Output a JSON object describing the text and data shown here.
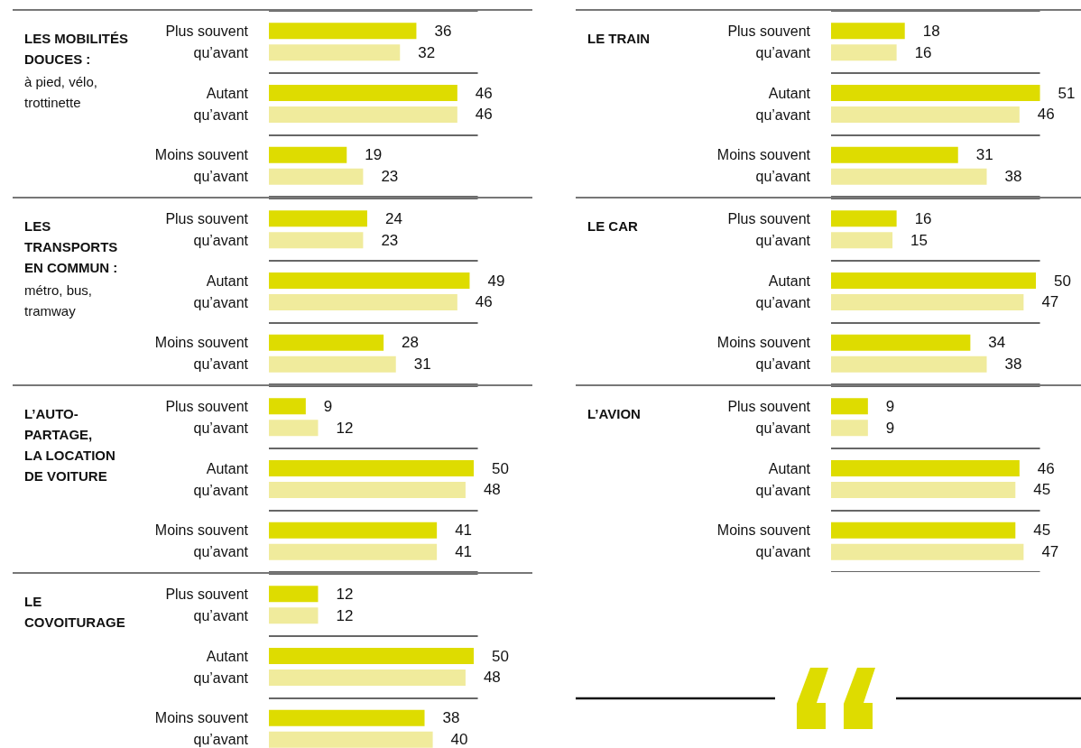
{
  "chart_data": [
    {
      "type": "bar",
      "orientation": "horizontal",
      "title": "LES MOBILITÉS\nDOUCES :",
      "subtitle": "à pied, vélo,\ntrottinette",
      "categories": [
        "Plus souvent\nqu’avant",
        "Autant\nqu’avant",
        "Moins souvent\nqu’avant"
      ],
      "grid": "y",
      "data_labels": true,
      "series": [
        {
          "color": "#dedc00",
          "values": [
            36,
            46,
            19
          ]
        },
        {
          "color": "#f0eb9c",
          "values": [
            32,
            46,
            23
          ]
        }
      ]
    },
    {
      "type": "bar",
      "orientation": "horizontal",
      "title": "LES\nTRANSPORTS\nEN COMMUN :",
      "subtitle": "métro, bus,\ntramway",
      "categories": [
        "Plus souvent\nqu’avant",
        "Autant\nqu’avant",
        "Moins souvent\nqu’avant"
      ],
      "grid": "y",
      "data_labels": true,
      "series": [
        {
          "color": "#dedc00",
          "values": [
            24,
            49,
            28
          ]
        },
        {
          "color": "#f0eb9c",
          "values": [
            23,
            46,
            31
          ]
        }
      ]
    },
    {
      "type": "bar",
      "orientation": "horizontal",
      "title": "L’AUTO-\nPARTAGE,\nLA LOCATION\nDE VOITURE",
      "categories": [
        "Plus souvent\nqu’avant",
        "Autant\nqu’avant",
        "Moins souvent\nqu’avant"
      ],
      "grid": "y",
      "data_labels": true,
      "series": [
        {
          "color": "#dedc00",
          "values": [
            9,
            50,
            41
          ]
        },
        {
          "color": "#f0eb9c",
          "values": [
            12,
            48,
            41
          ]
        }
      ]
    },
    {
      "type": "bar",
      "orientation": "horizontal",
      "title": "LE\nCOVOITURAGE",
      "categories": [
        "Plus souvent\nqu’avant",
        "Autant\nqu’avant",
        "Moins souvent\nqu’avant"
      ],
      "grid": "y",
      "data_labels": true,
      "series": [
        {
          "color": "#dedc00",
          "values": [
            12,
            50,
            38
          ]
        },
        {
          "color": "#f0eb9c",
          "values": [
            12,
            48,
            40
          ]
        }
      ]
    },
    {
      "type": "bar",
      "orientation": "horizontal",
      "title": "LE TRAIN",
      "categories": [
        "Plus souvent\nqu’avant",
        "Autant\nqu’avant",
        "Moins souvent\nqu’avant"
      ],
      "grid": "y",
      "data_labels": true,
      "series": [
        {
          "color": "#dedc00",
          "values": [
            18,
            51,
            31
          ]
        },
        {
          "color": "#f0eb9c",
          "values": [
            16,
            46,
            38
          ]
        }
      ]
    },
    {
      "type": "bar",
      "orientation": "horizontal",
      "title": "LE CAR",
      "categories": [
        "Plus souvent\nqu’avant",
        "Autant\nqu’avant",
        "Moins souvent\nqu’avant"
      ],
      "grid": "y",
      "data_labels": true,
      "series": [
        {
          "color": "#dedc00",
          "values": [
            16,
            50,
            34
          ]
        },
        {
          "color": "#f0eb9c",
          "values": [
            15,
            47,
            38
          ]
        }
      ]
    },
    {
      "type": "bar",
      "orientation": "horizontal",
      "title": "L’AVION",
      "categories": [
        "Plus souvent\nqu’avant",
        "Autant\nqu’avant",
        "Moins souvent\nqu’avant"
      ],
      "grid": "y",
      "data_labels": true,
      "series": [
        {
          "color": "#dedc00",
          "values": [
            9,
            46,
            45
          ]
        },
        {
          "color": "#f0eb9c",
          "values": [
            9,
            45,
            47
          ]
        }
      ]
    }
  ]
}
